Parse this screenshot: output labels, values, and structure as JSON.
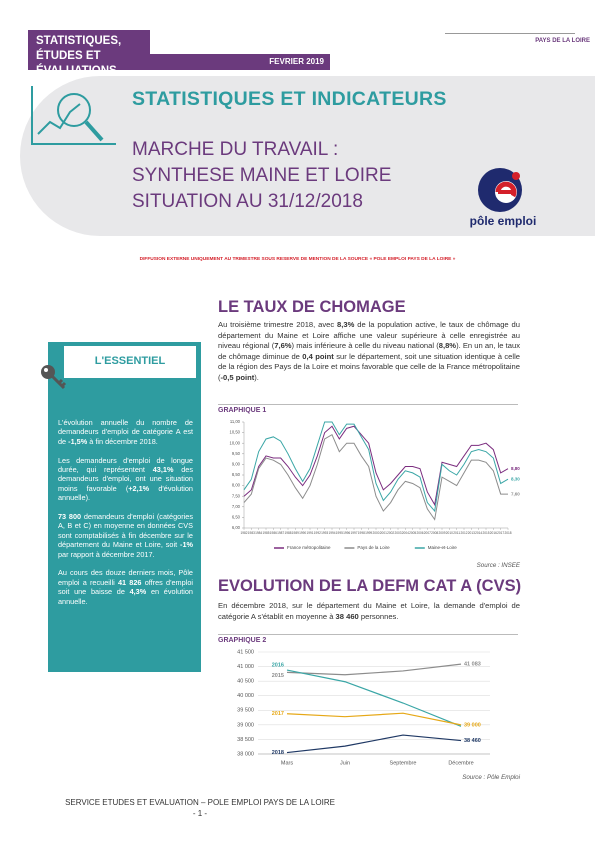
{
  "header": {
    "series_lines": [
      "STATISTIQUES,",
      "ÉTUDES ET ÉVALUATIONS"
    ],
    "date": "FEVRIER 2019",
    "region": "PAYS DE LA LOIRE",
    "rubric": "STATISTIQUES ET INDICATEURS",
    "title_lines": [
      "MARCHE DU TRAVAIL :",
      "SYNTHESE MAINE ET LOIRE",
      "SITUATION AU 31/12/2018"
    ],
    "logo": "pôle emploi"
  },
  "notice": "DIFFUSION EXTERNE UNIQUEMENT AU TRIMESTRE SOUS RESERVE DE MENTION DE LA SOURCE « POLE EMPLOI PAYS DE LA LOIRE »",
  "sidebar": {
    "title": "L'ESSENTIEL",
    "paragraphs": [
      [
        {
          "text": "L'évolution annuelle du nombre de demandeurs d'emploi de catégorie A est de ",
          "bold": false
        },
        {
          "text": "-1,5%",
          "bold": true
        },
        {
          "text": " à fin décembre 2018.",
          "bold": false
        }
      ],
      [
        {
          "text": "Les demandeurs d'emploi de longue durée, qui représentent ",
          "bold": false
        },
        {
          "text": "43,1%",
          "bold": true
        },
        {
          "text": " des demandeurs d'emploi, ont une situation moins favorable (",
          "bold": false
        },
        {
          "text": "+2,1%",
          "bold": true
        },
        {
          "text": " d'évolution annuelle).",
          "bold": false
        }
      ],
      [
        {
          "text": "73 800",
          "bold": true
        },
        {
          "text": " demandeurs d'emploi (catégories A, B et C) en moyenne en données CVS sont comptabilisés à fin décembre sur le département du Maine et Loire, soit ",
          "bold": false
        },
        {
          "text": "-1%",
          "bold": true
        },
        {
          "text": " par rapport à décembre 2017.",
          "bold": false
        }
      ],
      [
        {
          "text": "Au cours des douze derniers mois, Pôle emploi a recueilli ",
          "bold": false
        },
        {
          "text": "41 826",
          "bold": true
        },
        {
          "text": " offres d'emploi soit une baisse de ",
          "bold": false
        },
        {
          "text": "4,3%",
          "bold": true
        },
        {
          "text": " en évolution annuelle.",
          "bold": false
        }
      ]
    ]
  },
  "sections": [
    {
      "title": "LE TAUX DE CHOMAGE",
      "paragraph": [
        {
          "text": "Au troisième trimestre 2018, avec ",
          "bold": false
        },
        {
          "text": "8,3%",
          "bold": true
        },
        {
          "text": " de la population active, le taux de chômage du département du Maine et Loire affiche une valeur supérieure à celle enregistrée au niveau régional (",
          "bold": false
        },
        {
          "text": "7,6%",
          "bold": true
        },
        {
          "text": ") mais inférieure à celle du niveau national (",
          "bold": false
        },
        {
          "text": "8,8%",
          "bold": true
        },
        {
          "text": "). En un an, le taux de chômage diminue de ",
          "bold": false
        },
        {
          "text": "0,4 point",
          "bold": true
        },
        {
          "text": " sur le département, soit une situation identique à celle de la région des Pays de la Loire et moins favorable que celle de la France métropolitaine (",
          "bold": false
        },
        {
          "text": "-0,5 point",
          "bold": true
        },
        {
          "text": ").",
          "bold": false
        }
      ]
    },
    {
      "title": "EVOLUTION DE LA DEFM CAT A (CVS)",
      "paragraph": [
        {
          "text": "En décembre 2018, sur le département du Maine et Loire, la demande d'emploi de catégorie A s'établit en moyenne à ",
          "bold": false
        },
        {
          "text": "38 460",
          "bold": true
        },
        {
          "text": " personnes.",
          "bold": false
        }
      ]
    }
  ],
  "chart_data": [
    {
      "type": "line",
      "title": "GRAPHIQUE 1",
      "source": "Source : INSEE",
      "x": [
        1982,
        1983,
        1984,
        1985,
        1986,
        1987,
        1988,
        1989,
        1990,
        1991,
        1992,
        1993,
        1994,
        1995,
        1996,
        1997,
        1998,
        1999,
        2000,
        2001,
        2002,
        2003,
        2004,
        2005,
        2006,
        2007,
        2008,
        2009,
        2010,
        2011,
        2012,
        2013,
        2014,
        2015,
        2016,
        2017,
        2018
      ],
      "xlim": [
        1982,
        2018
      ],
      "xticks": [
        1982,
        1983,
        1984,
        1985,
        1986,
        1987,
        1988,
        1989,
        1990,
        1991,
        1992,
        1993,
        1994,
        1995,
        1996,
        1997,
        1998,
        1999,
        2000,
        2001,
        2002,
        2003,
        2004,
        2005,
        2006,
        2007,
        2008,
        2009,
        2010,
        2011,
        2012,
        2013,
        2014,
        2015,
        2016,
        2017,
        2018
      ],
      "ylim": [
        6,
        11
      ],
      "yticks": [
        {
          "value": 6,
          "label": "6,00"
        },
        {
          "value": 6.5,
          "label": "6,50"
        },
        {
          "value": 7,
          "label": "7,00"
        },
        {
          "value": 7.5,
          "label": "7,50"
        },
        {
          "value": 8,
          "label": "8,00"
        },
        {
          "value": 8.5,
          "label": "8,50"
        },
        {
          "value": 9,
          "label": "9,00"
        },
        {
          "value": 9.5,
          "label": "9,50"
        },
        {
          "value": 10,
          "label": "10,00"
        },
        {
          "value": 10.5,
          "label": "10,50"
        },
        {
          "value": 11,
          "label": "11,00"
        }
      ],
      "grid": false,
      "legend": "bottom",
      "series": [
        {
          "name": "France métropolitaine",
          "color": "#7b2d7f",
          "values": [
            7.5,
            7.8,
            8.9,
            9.4,
            9.3,
            9.3,
            8.9,
            8.4,
            8.0,
            8.5,
            9.4,
            10.5,
            10.8,
            10.2,
            10.7,
            10.8,
            10.4,
            10.0,
            8.6,
            7.8,
            8.1,
            8.5,
            8.9,
            8.9,
            8.8,
            7.7,
            7.1,
            9.1,
            9.0,
            8.9,
            9.4,
            9.9,
            9.9,
            10.0,
            9.7,
            8.6,
            8.8
          ],
          "value_labels": [
            null,
            null,
            null,
            null,
            null,
            null,
            null,
            null,
            null,
            null,
            null,
            null,
            null,
            null,
            null,
            null,
            null,
            null,
            null,
            null,
            null,
            null,
            null,
            null,
            null,
            null,
            null,
            null,
            null,
            null,
            null,
            null,
            null,
            null,
            null,
            null,
            "8,80"
          ]
        },
        {
          "name": "Pays de la Loire",
          "color": "#8c8c8c",
          "values": [
            7.2,
            7.6,
            8.8,
            9.3,
            9.2,
            9.0,
            8.5,
            7.9,
            7.4,
            8.0,
            9.0,
            10.2,
            10.4,
            9.6,
            10.0,
            10.0,
            9.4,
            8.9,
            7.5,
            6.8,
            7.2,
            7.8,
            8.2,
            8.1,
            7.9,
            6.9,
            6.4,
            8.4,
            8.2,
            8.0,
            8.6,
            9.2,
            9.2,
            9.1,
            8.7,
            7.6,
            7.6
          ],
          "value_labels": [
            null,
            null,
            null,
            null,
            null,
            null,
            null,
            null,
            null,
            null,
            null,
            null,
            null,
            null,
            null,
            null,
            null,
            null,
            null,
            null,
            null,
            null,
            null,
            null,
            null,
            null,
            null,
            null,
            null,
            null,
            null,
            null,
            null,
            null,
            null,
            null,
            "7,60"
          ]
        },
        {
          "name": "Maine-et-Loire",
          "color": "#3aa6a6",
          "values": [
            7.8,
            8.3,
            9.6,
            10.2,
            10.3,
            10.1,
            9.5,
            8.8,
            8.2,
            8.8,
            9.9,
            11.0,
            11.0,
            10.4,
            10.9,
            10.9,
            10.3,
            9.7,
            8.1,
            7.3,
            7.7,
            8.3,
            8.7,
            8.6,
            8.4,
            7.2,
            6.8,
            9.0,
            8.7,
            8.5,
            9.0,
            9.6,
            9.7,
            9.6,
            9.3,
            8.1,
            8.3
          ],
          "value_labels": [
            null,
            null,
            null,
            null,
            null,
            null,
            null,
            null,
            null,
            null,
            null,
            null,
            null,
            null,
            null,
            null,
            null,
            null,
            null,
            null,
            null,
            null,
            null,
            null,
            null,
            null,
            null,
            null,
            null,
            null,
            null,
            null,
            null,
            null,
            null,
            null,
            "8,30"
          ]
        }
      ]
    },
    {
      "type": "line",
      "title": "GRAPHIQUE 2",
      "source": "Source : Pôle Emploi",
      "categories": [
        "Mars",
        "Juin",
        "Septembre",
        "Décembre"
      ],
      "ylim": [
        38000,
        41500
      ],
      "yticks": [
        {
          "value": 38000,
          "label": "38 000"
        },
        {
          "value": 38500,
          "label": "38 500"
        },
        {
          "value": 39000,
          "label": "39 000"
        },
        {
          "value": 39500,
          "label": "39 500"
        },
        {
          "value": 40000,
          "label": "40 000"
        },
        {
          "value": 40500,
          "label": "40 500"
        },
        {
          "value": 41000,
          "label": "41 000"
        },
        {
          "value": 41500,
          "label": "41 500"
        }
      ],
      "grid": true,
      "legend": "line-start",
      "series": [
        {
          "name": "2015",
          "color": "#8c8c8c",
          "values": [
            40800,
            40720,
            40850,
            41083
          ],
          "value_labels": [
            null,
            null,
            null,
            "41 083"
          ]
        },
        {
          "name": "2016",
          "color": "#3aa6a6",
          "values": [
            40880,
            40480,
            39750,
            38950
          ]
        },
        {
          "name": "2017",
          "color": "#e6a817",
          "values": [
            39380,
            39280,
            39400,
            39000
          ],
          "value_labels": [
            null,
            null,
            null,
            "39 000"
          ]
        },
        {
          "name": "2018",
          "color": "#1f3864",
          "values": [
            38050,
            38270,
            38650,
            38460
          ],
          "value_labels": [
            null,
            null,
            null,
            "38 460"
          ]
        }
      ]
    }
  ],
  "footer": {
    "service": "SERVICE ETUDES ET EVALUATION – POLE EMPLOI PAYS DE LA LOIRE",
    "page": "- 1 -"
  }
}
